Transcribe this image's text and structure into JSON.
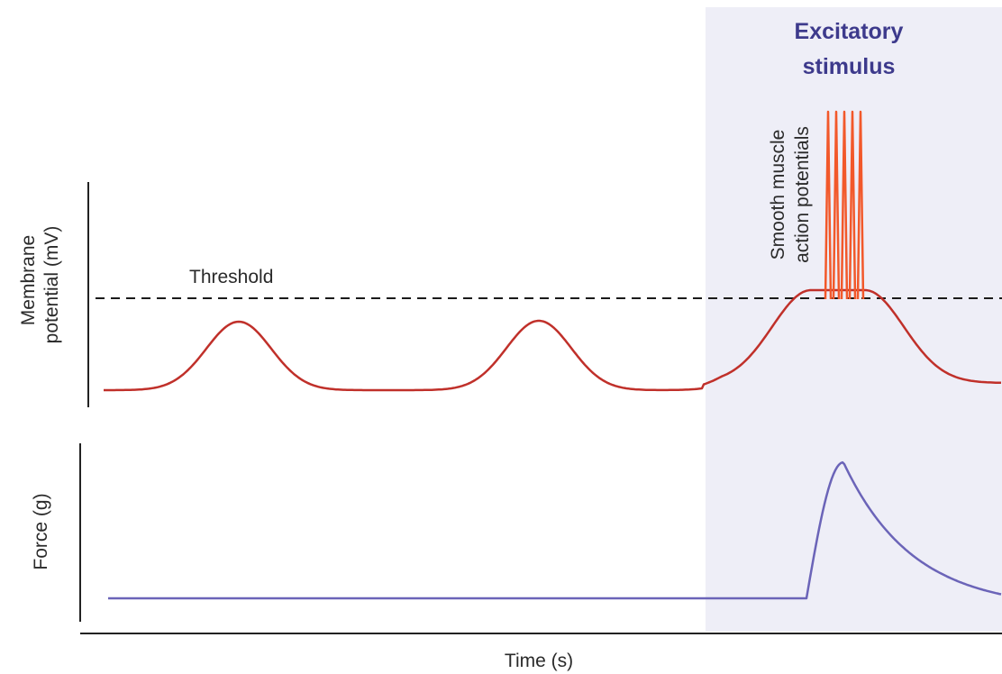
{
  "stimulus": {
    "title_line1": "Excitatory",
    "title_line2": "stimulus"
  },
  "membrane_panel": {
    "ylabel_line1": "Membrane",
    "ylabel_line2": "potential (mV)",
    "threshold_label": "Threshold",
    "spikes_label_line1": "Smooth muscle",
    "spikes_label_line2": "action potentials",
    "spike_count": 5
  },
  "force_panel": {
    "ylabel": "Force (g)"
  },
  "time_axis": {
    "xlabel": "Time (s)"
  },
  "colors": {
    "membrane_trace": "#c0302a",
    "action_potential": "#f2582a",
    "force_trace": "#6b64b8",
    "stimulus_region": "#eeeef7",
    "stimulus_title": "#3d3a8c",
    "axis": "#222222"
  }
}
